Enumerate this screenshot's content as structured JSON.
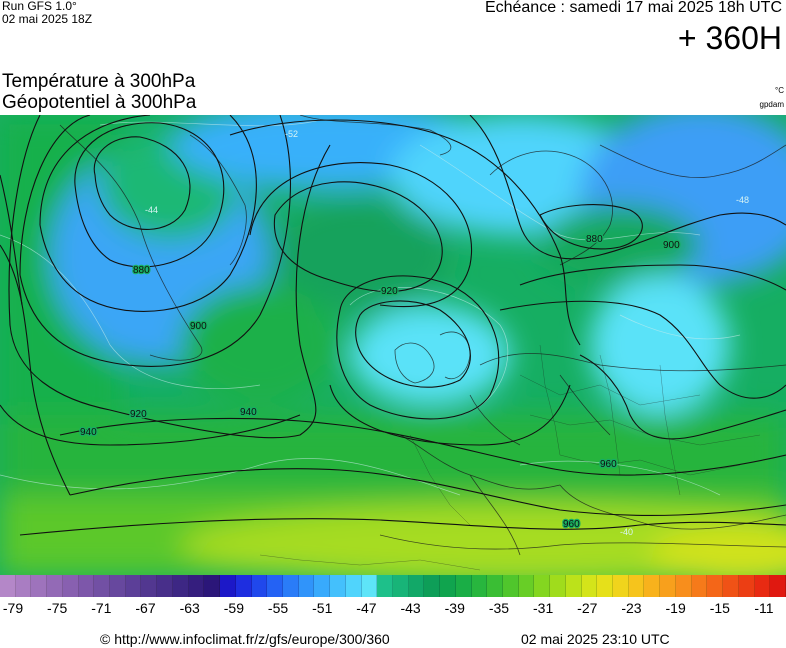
{
  "header": {
    "run_label": "Run GFS 1.0°",
    "run_date": "02 mai 2025 18Z",
    "echeance": "Echéance : samedi 17 mai 2025 18h UTC",
    "hour": "+ 360H"
  },
  "titles": {
    "line1": "Température à 300hPa",
    "line2": "Géopotentiel à 300hPa",
    "unit_temp": "°C",
    "unit_geo": "gpdam"
  },
  "isohypse_labels": [
    "880",
    "900",
    "920",
    "940",
    "960",
    "880",
    "900",
    "920",
    "940",
    "960"
  ],
  "temp_labels": [
    "-52",
    "-44",
    "-48",
    "-40"
  ],
  "color_scale": {
    "colors": [
      "#b487c8",
      "#a97dc2",
      "#9e73bc",
      "#936ab6",
      "#8860b0",
      "#7d57aa",
      "#7250a4",
      "#67489e",
      "#5c3f98",
      "#523790",
      "#482f8a",
      "#3d2784",
      "#351e7e",
      "#2b1679",
      "#1c18c8",
      "#1e2ee0",
      "#2048ec",
      "#2462f4",
      "#2a7cf8",
      "#3094fa",
      "#38aafc",
      "#44c0fc",
      "#50d4fc",
      "#5ee4f8",
      "#1ec08a",
      "#18b478",
      "#12a868",
      "#0e9e58",
      "#10a44e",
      "#1aae46",
      "#28b63e",
      "#3abe34",
      "#50c62c",
      "#68ce26",
      "#84d620",
      "#a0dc1c",
      "#bce21a",
      "#d4e41a",
      "#e6e01a",
      "#f0d41c",
      "#f6c41c",
      "#f8b21c",
      "#f8a01c",
      "#f88e1c",
      "#f67a1a",
      "#f46618",
      "#f05216",
      "#ec3e14",
      "#e82a12",
      "#e01810"
    ],
    "labels": [
      "-79",
      "-75",
      "-71",
      "-67",
      "-63",
      "-59",
      "-55",
      "-51",
      "-47",
      "-43",
      "-39",
      "-35",
      "-31",
      "-27",
      "-23",
      "-19",
      "-15",
      "-11"
    ]
  },
  "footer": {
    "credit": "© http://www.infoclimat.fr/z/gfs/europe/300/360",
    "generated": "02 mai 2025 23:10 UTC"
  }
}
